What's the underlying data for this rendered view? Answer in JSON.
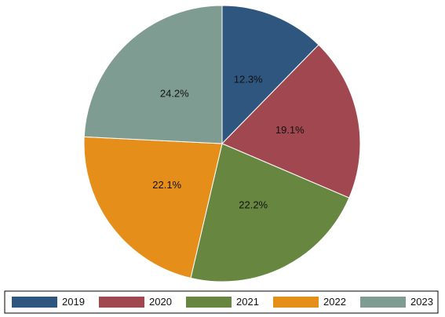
{
  "chart_data": {
    "type": "pie",
    "title": "",
    "categories": [
      "2019",
      "2020",
      "2021",
      "2022",
      "2023"
    ],
    "values": [
      12.3,
      19.1,
      22.2,
      22.1,
      24.2
    ],
    "data_labels": [
      "12.3%",
      "19.1%",
      "22.2%",
      "22.1%",
      "24.2%"
    ],
    "colors": [
      "#2f567e",
      "#a0474f",
      "#678741",
      "#e58e1a",
      "#7f9c92"
    ],
    "start": "12 o'clock",
    "direction": "clockwise",
    "legend": {
      "placement": "bottom",
      "entries": [
        "2019",
        "2020",
        "2021",
        "2022",
        "2023"
      ]
    }
  }
}
